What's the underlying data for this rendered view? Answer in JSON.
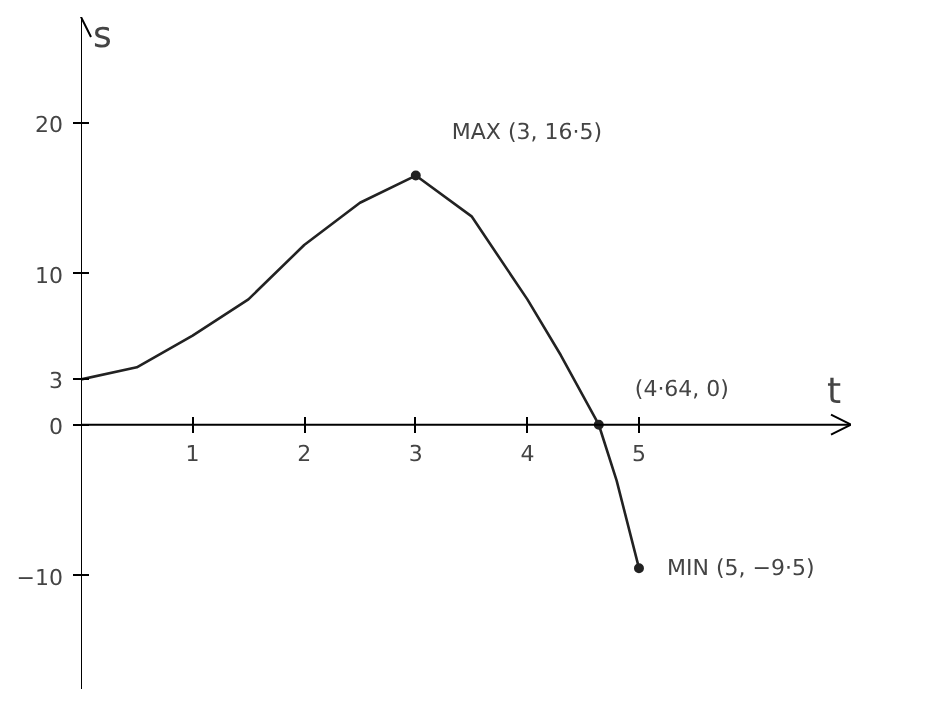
{
  "chart_data": {
    "type": "line",
    "xlabel": "t",
    "ylabel": "s",
    "series": [
      {
        "color": "#222222",
        "x": [
          0,
          0.5,
          1,
          1.5,
          2,
          2.5,
          3,
          3.5,
          4,
          4.3,
          4.64,
          4.8,
          5
        ],
        "values": [
          3,
          3.8,
          5.9,
          8.3,
          11.9,
          14.7,
          16.5,
          13.8,
          8.3,
          4.6,
          0,
          -3.7,
          -9.5
        ]
      }
    ],
    "xlim": [
      0,
      6.9
    ],
    "ylim": [
      -17.5,
      27
    ],
    "xticks": [
      1,
      2,
      3,
      4,
      5
    ],
    "yticks": [
      -10,
      0,
      3,
      10,
      20
    ],
    "annotations": [
      {
        "text": "MAX (3, 16·5)",
        "x": 3,
        "y": 16.5
      },
      {
        "text": "(4·64, 0)",
        "x": 4.64,
        "y": 0
      },
      {
        "text": "MIN (5, −9·5)",
        "x": 5,
        "y": -9.5
      }
    ],
    "grid": false,
    "marker": "none"
  }
}
